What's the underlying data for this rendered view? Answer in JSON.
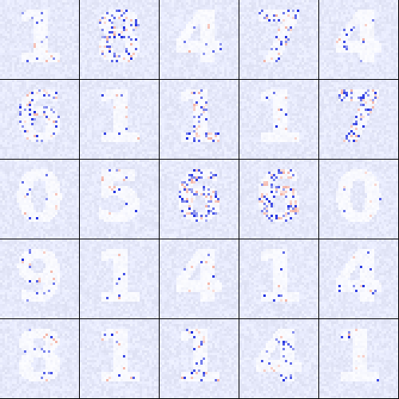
{
  "grid": {
    "rows": 5,
    "cols": 5,
    "colors": {
      "background": "#e6e9fb",
      "positive": "#2030e0",
      "negative": "#f0a090",
      "neutral": "#ffffff",
      "separator": "#000000"
    },
    "tiles": [
      {
        "digit": "1",
        "strength": 0.15
      },
      {
        "digit": "8",
        "strength": 0.9
      },
      {
        "digit": "4",
        "strength": 0.15
      },
      {
        "digit": "7",
        "strength": 0.7
      },
      {
        "digit": "4",
        "strength": 0.15
      },
      {
        "digit": "6",
        "strength": 0.55
      },
      {
        "digit": "1",
        "strength": 0.12
      },
      {
        "digit": "1",
        "strength": 0.75
      },
      {
        "digit": "1",
        "strength": 0.12
      },
      {
        "digit": "7",
        "strength": 1.0
      },
      {
        "digit": "0",
        "strength": 0.12
      },
      {
        "digit": "5",
        "strength": 0.15
      },
      {
        "digit": "6",
        "strength": 1.0
      },
      {
        "digit": "6",
        "strength": 1.0
      },
      {
        "digit": "0",
        "strength": 0.12
      },
      {
        "digit": "9",
        "strength": 0.12
      },
      {
        "digit": "1",
        "strength": 0.12
      },
      {
        "digit": "4",
        "strength": 0.12
      },
      {
        "digit": "1",
        "strength": 0.12
      },
      {
        "digit": "4",
        "strength": 0.12
      },
      {
        "digit": "8",
        "strength": 0.12
      },
      {
        "digit": "1",
        "strength": 0.12
      },
      {
        "digit": "1",
        "strength": 0.35
      },
      {
        "digit": "4",
        "strength": 0.3
      },
      {
        "digit": "1",
        "strength": 0.1
      }
    ]
  }
}
